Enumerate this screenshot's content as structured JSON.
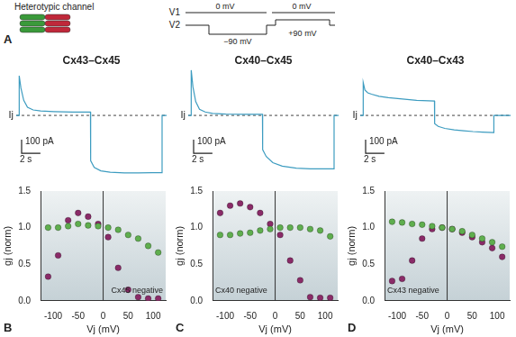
{
  "diagram": {
    "panel": "A",
    "title": "Heterotypic channel",
    "protocol": {
      "V1": "V1",
      "V2": "V2",
      "V1_labels": [
        "0 mV",
        "0 mV"
      ],
      "V2_labels": [
        "−90 mV",
        "+90 mV"
      ]
    }
  },
  "chart_data": [
    {
      "type": "line",
      "title": "Cx43–Cx45",
      "y_label": "Ij",
      "color": "#3d9cc0",
      "tick_labels": false,
      "x": [
        0,
        0.3,
        0.32,
        0.5,
        0.8,
        1.2,
        1.8,
        2.6,
        4,
        6,
        7.9,
        7.92,
        8.3,
        9,
        10,
        11.5,
        13,
        14.5,
        15.5,
        15.52,
        16
      ],
      "values": [
        0,
        0,
        290,
        200,
        110,
        60,
        40,
        32,
        28,
        25,
        25,
        -330,
        -380,
        -405,
        -415,
        -420,
        -420,
        -418,
        -418,
        0,
        0
      ],
      "xlim": [
        0,
        16
      ],
      "ylim": [
        -460,
        340
      ],
      "reference_lines": [
        {
          "y": 0,
          "line_style": "dashed"
        }
      ],
      "scale_bar": {
        "x": 2,
        "x_label": "2 s",
        "y": 100,
        "y_label": "100 pA"
      }
    },
    {
      "type": "line",
      "title": "Cx40–Cx45",
      "y_label": "Ij",
      "color": "#3d9cc0",
      "tick_labels": false,
      "x": [
        0,
        0.3,
        0.32,
        0.5,
        0.8,
        1.2,
        1.8,
        2.6,
        4,
        6,
        7.9,
        7.92,
        8.3,
        9,
        10,
        11.5,
        13,
        14.5,
        15.5,
        15.52,
        16
      ],
      "values": [
        0,
        0,
        330,
        210,
        100,
        45,
        25,
        15,
        10,
        8,
        8,
        -250,
        -300,
        -345,
        -370,
        -385,
        -390,
        -390,
        -390,
        0,
        0
      ],
      "xlim": [
        0,
        16
      ],
      "ylim": [
        -460,
        340
      ],
      "reference_lines": [
        {
          "y": 0,
          "line_style": "dashed"
        }
      ],
      "scale_bar": {
        "x": 2,
        "x_label": "2 s",
        "y": 100,
        "y_label": "100 pA"
      }
    },
    {
      "type": "line",
      "title": "Cx40–Cx43",
      "y_label": "Ij",
      "color": "#3d9cc0",
      "tick_labels": false,
      "x": [
        0,
        0.3,
        0.32,
        0.5,
        0.8,
        1.2,
        2,
        3,
        4.5,
        6,
        7.9,
        7.92,
        8.3,
        9,
        10,
        11,
        12,
        13,
        14.2,
        14.22,
        16
      ],
      "values": [
        0,
        0,
        240,
        185,
        165,
        155,
        140,
        130,
        120,
        110,
        105,
        -60,
        -80,
        -95,
        -105,
        -112,
        -118,
        -122,
        -125,
        0,
        0
      ],
      "xlim": [
        0,
        16
      ],
      "ylim": [
        -460,
        340
      ],
      "reference_lines": [
        {
          "y": 0,
          "line_style": "dashed"
        }
      ],
      "scale_bar": {
        "x": 2,
        "x_label": "2 s",
        "y": 100,
        "y_label": "100 pA"
      }
    },
    {
      "type": "scatter",
      "panel": "B",
      "x_label": "Vj (mV)",
      "y_label": "gj (norm)",
      "x": [
        -110,
        -90,
        -70,
        -50,
        -30,
        -10,
        10,
        30,
        50,
        70,
        90,
        110
      ],
      "series": [
        {
          "color": "#5fae4e",
          "values": [
            1.0,
            1.0,
            1.02,
            1.05,
            1.03,
            1.02,
            1.0,
            0.97,
            0.9,
            0.85,
            0.75,
            0.66
          ]
        },
        {
          "color": "#8a2b68",
          "values": [
            0.33,
            0.62,
            1.1,
            1.2,
            1.15,
            1.05,
            0.87,
            0.45,
            0.15,
            0.05,
            0.03,
            0.03
          ]
        }
      ],
      "xlim": [
        -125,
        125
      ],
      "xticks": [
        -100,
        -50,
        0,
        50,
        100
      ],
      "ylim": [
        0,
        1.5
      ],
      "yticks": [
        {
          "value": 0,
          "label": "0.0"
        },
        {
          "value": 0.5,
          "label": "0.5"
        },
        {
          "value": 1,
          "label": "1.0"
        },
        {
          "value": 1.5,
          "label": "1.5"
        }
      ],
      "reference_lines": [
        {
          "x": 0
        }
      ],
      "annotations": [
        {
          "text": "Cx45 negative"
        }
      ]
    },
    {
      "type": "scatter",
      "panel": "C",
      "x_label": "Vj (mV)",
      "y_label": "gj (norm)",
      "x": [
        -110,
        -90,
        -70,
        -50,
        -30,
        -10,
        10,
        30,
        50,
        70,
        90,
        110
      ],
      "series": [
        {
          "color": "#5fae4e",
          "values": [
            0.9,
            0.9,
            0.92,
            0.93,
            0.96,
            0.98,
            1.0,
            1.0,
            1.0,
            0.98,
            0.96,
            0.88
          ]
        },
        {
          "color": "#8a2b68",
          "values": [
            1.2,
            1.3,
            1.33,
            1.28,
            1.2,
            1.05,
            0.9,
            0.55,
            0.28,
            0.05,
            0.04,
            0.04
          ]
        }
      ],
      "xlim": [
        -125,
        125
      ],
      "xticks": [
        -100,
        -50,
        0,
        50,
        100
      ],
      "ylim": [
        0,
        1.5
      ],
      "yticks": [
        {
          "value": 0,
          "label": "0.0"
        },
        {
          "value": 0.5,
          "label": "0.5"
        },
        {
          "value": 1,
          "label": "1.0"
        },
        {
          "value": 1.5,
          "label": "1.5"
        }
      ],
      "reference_lines": [
        {
          "x": 0
        }
      ],
      "annotations": [
        {
          "text": "Cx40 negative"
        }
      ]
    },
    {
      "type": "scatter",
      "panel": "D",
      "x_label": "Vj (mV)",
      "y_label": "gj (norm)",
      "x": [
        -110,
        -90,
        -70,
        -50,
        -30,
        -10,
        10,
        30,
        50,
        70,
        90,
        110
      ],
      "series": [
        {
          "color": "#5fae4e",
          "values": [
            1.08,
            1.07,
            1.05,
            1.04,
            1.02,
            1.0,
            0.98,
            0.95,
            0.9,
            0.85,
            0.8,
            0.74
          ]
        },
        {
          "color": "#8a2b68",
          "values": [
            0.27,
            0.3,
            0.55,
            0.85,
            0.98,
            1.0,
            0.98,
            0.93,
            0.87,
            0.8,
            0.72,
            0.6
          ]
        }
      ],
      "xlim": [
        -125,
        125
      ],
      "xticks": [
        -100,
        -50,
        0,
        50,
        100
      ],
      "ylim": [
        0,
        1.5
      ],
      "yticks": [
        {
          "value": 0,
          "label": "0.0"
        },
        {
          "value": 0.5,
          "label": "0.5"
        },
        {
          "value": 1,
          "label": "1.0"
        },
        {
          "value": 1.5,
          "label": "1.5"
        }
      ],
      "reference_lines": [
        {
          "x": 0
        }
      ],
      "annotations": [
        {
          "text": "Cx43 negative"
        }
      ]
    }
  ]
}
